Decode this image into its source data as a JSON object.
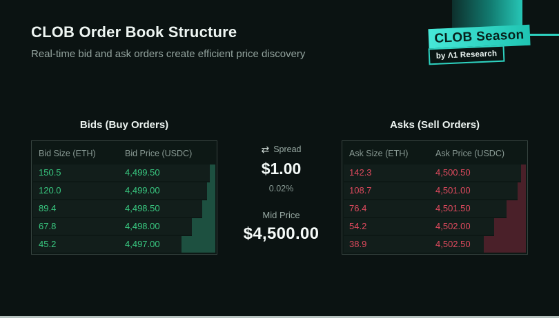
{
  "page": {
    "title": "CLOB Order Book Structure",
    "subtitle": "Real-time bid and ask orders create efficient price discovery"
  },
  "brand": {
    "badge_label": "CLOB Season",
    "byline": "by Λ1 Research"
  },
  "bids": {
    "section_title": "Bids (Buy Orders)",
    "col_size": "Bid Size (ETH)",
    "col_price": "Bid Price (USDC)",
    "rows": [
      {
        "size": "150.5",
        "price": "4,499.50",
        "depth": 8
      },
      {
        "size": "120.0",
        "price": "4,499.00",
        "depth": 12
      },
      {
        "size": "89.4",
        "price": "4,498.50",
        "depth": 19
      },
      {
        "size": "67.8",
        "price": "4,498.00",
        "depth": 34
      },
      {
        "size": "45.2",
        "price": "4,497.00",
        "depth": 49
      }
    ]
  },
  "asks": {
    "section_title": "Asks (Sell Orders)",
    "col_size": "Ask Size (ETH)",
    "col_price": "Ask Price (USDC)",
    "rows": [
      {
        "size": "142.3",
        "price": "4,500.50",
        "depth": 7
      },
      {
        "size": "108.7",
        "price": "4,501.00",
        "depth": 12
      },
      {
        "size": "76.4",
        "price": "4,501.50",
        "depth": 28
      },
      {
        "size": "54.2",
        "price": "4,502.00",
        "depth": 46
      },
      {
        "size": "38.9",
        "price": "4,502.50",
        "depth": 61
      }
    ]
  },
  "spread": {
    "label": "Spread",
    "icon": "⇄",
    "value": "$1.00",
    "percent": "0.02%"
  },
  "mid_price": {
    "label": "Mid Price",
    "value": "$4,500.00"
  },
  "colors": {
    "background": "#0b1312",
    "brand_teal": "#2ed2c0",
    "bid_text": "#39c981",
    "bid_depth": "#1d5040",
    "ask_text": "#e04a5e",
    "ask_depth": "#4a2029"
  },
  "chart_data": {
    "type": "table",
    "tables": [
      {
        "title": "Bids (Buy Orders)",
        "columns": [
          "Bid Size (ETH)",
          "Bid Price (USDC)"
        ],
        "rows": [
          [
            150.5,
            4499.5
          ],
          [
            120.0,
            4499.0
          ],
          [
            89.4,
            4498.5
          ],
          [
            67.8,
            4498.0
          ],
          [
            45.2,
            4497.0
          ]
        ]
      },
      {
        "title": "Asks (Sell Orders)",
        "columns": [
          "Ask Size (ETH)",
          "Ask Price (USDC)"
        ],
        "rows": [
          [
            142.3,
            4500.5
          ],
          [
            108.7,
            4501.0
          ],
          [
            76.4,
            4501.5
          ],
          [
            54.2,
            4502.0
          ],
          [
            38.9,
            4502.5
          ]
        ]
      }
    ],
    "spread": 1.0,
    "spread_percent": 0.02,
    "mid_price": 4500.0
  }
}
